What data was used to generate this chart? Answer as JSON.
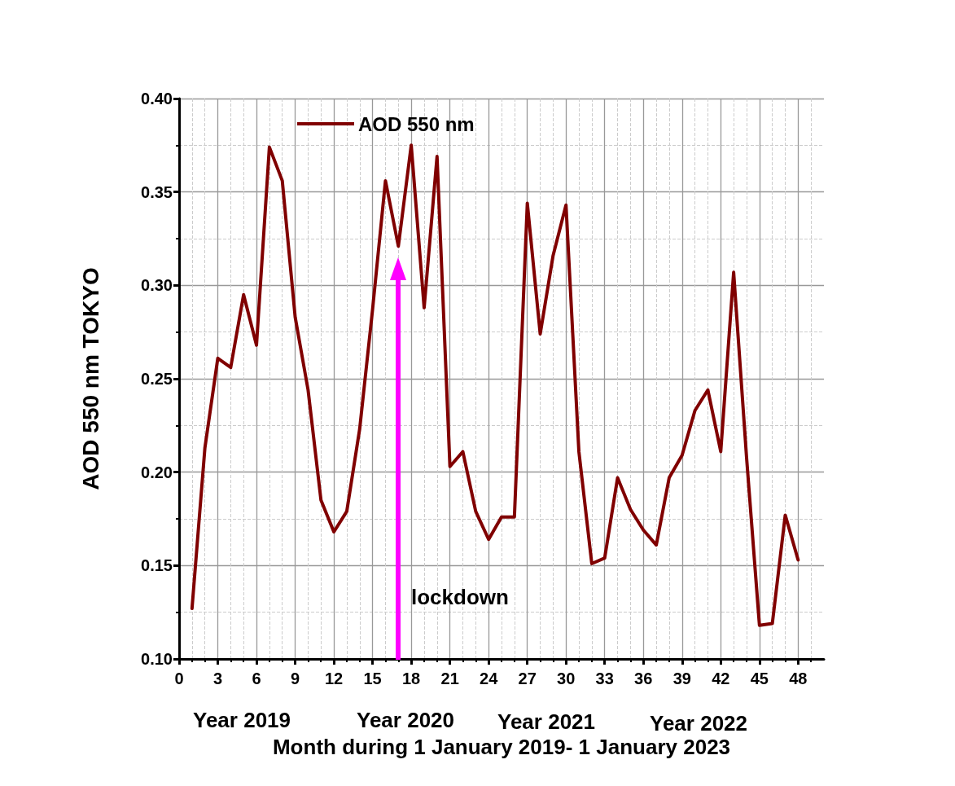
{
  "chart_data": {
    "type": "line",
    "xlabel": "Month during 1 January 2019- 1 January 2023",
    "ylabel": "AOD 550 nm TOKYO",
    "x": [
      1,
      2,
      3,
      4,
      5,
      6,
      7,
      8,
      9,
      10,
      11,
      12,
      13,
      14,
      15,
      16,
      17,
      18,
      19,
      20,
      21,
      22,
      23,
      24,
      25,
      26,
      27,
      28,
      29,
      30,
      31,
      32,
      33,
      34,
      35,
      36,
      37,
      38,
      39,
      40,
      41,
      42,
      43,
      44,
      45,
      46,
      47,
      48
    ],
    "series": [
      {
        "name": "AOD 550 nm",
        "color": "#800000",
        "values": [
          0.127,
          0.213,
          0.261,
          0.256,
          0.295,
          0.268,
          0.374,
          0.356,
          0.283,
          0.244,
          0.185,
          0.168,
          0.179,
          0.223,
          0.287,
          0.356,
          0.321,
          0.375,
          0.288,
          0.369,
          0.203,
          0.211,
          0.179,
          0.164,
          0.176,
          0.176,
          0.344,
          0.274,
          0.316,
          0.343,
          0.211,
          0.151,
          0.154,
          0.197,
          0.18,
          0.169,
          0.161,
          0.197,
          0.209,
          0.233,
          0.244,
          0.211,
          0.307,
          0.208,
          0.118,
          0.119,
          0.177,
          0.153
        ]
      }
    ],
    "xlim": [
      0,
      50
    ],
    "xticks": [
      0,
      3,
      6,
      9,
      12,
      15,
      18,
      21,
      24,
      27,
      30,
      33,
      36,
      39,
      42,
      45,
      48
    ],
    "ylim": [
      0.1,
      0.4
    ],
    "yticks": [
      {
        "value": 0.1,
        "label": "0.10"
      },
      {
        "value": 0.15,
        "label": "0.15"
      },
      {
        "value": 0.2,
        "label": "0.20"
      },
      {
        "value": 0.25,
        "label": "0.25"
      },
      {
        "value": 0.3,
        "label": "0.30"
      },
      {
        "value": 0.35,
        "label": "0.35"
      },
      {
        "value": 0.4,
        "label": "0.40"
      }
    ],
    "annotations": [
      "lockdown",
      "Year 2019",
      "Year 2020",
      "Year 2021",
      "Year 2022"
    ],
    "grid": true,
    "legend": "top left",
    "marker": "none",
    "line_style": "solid"
  }
}
